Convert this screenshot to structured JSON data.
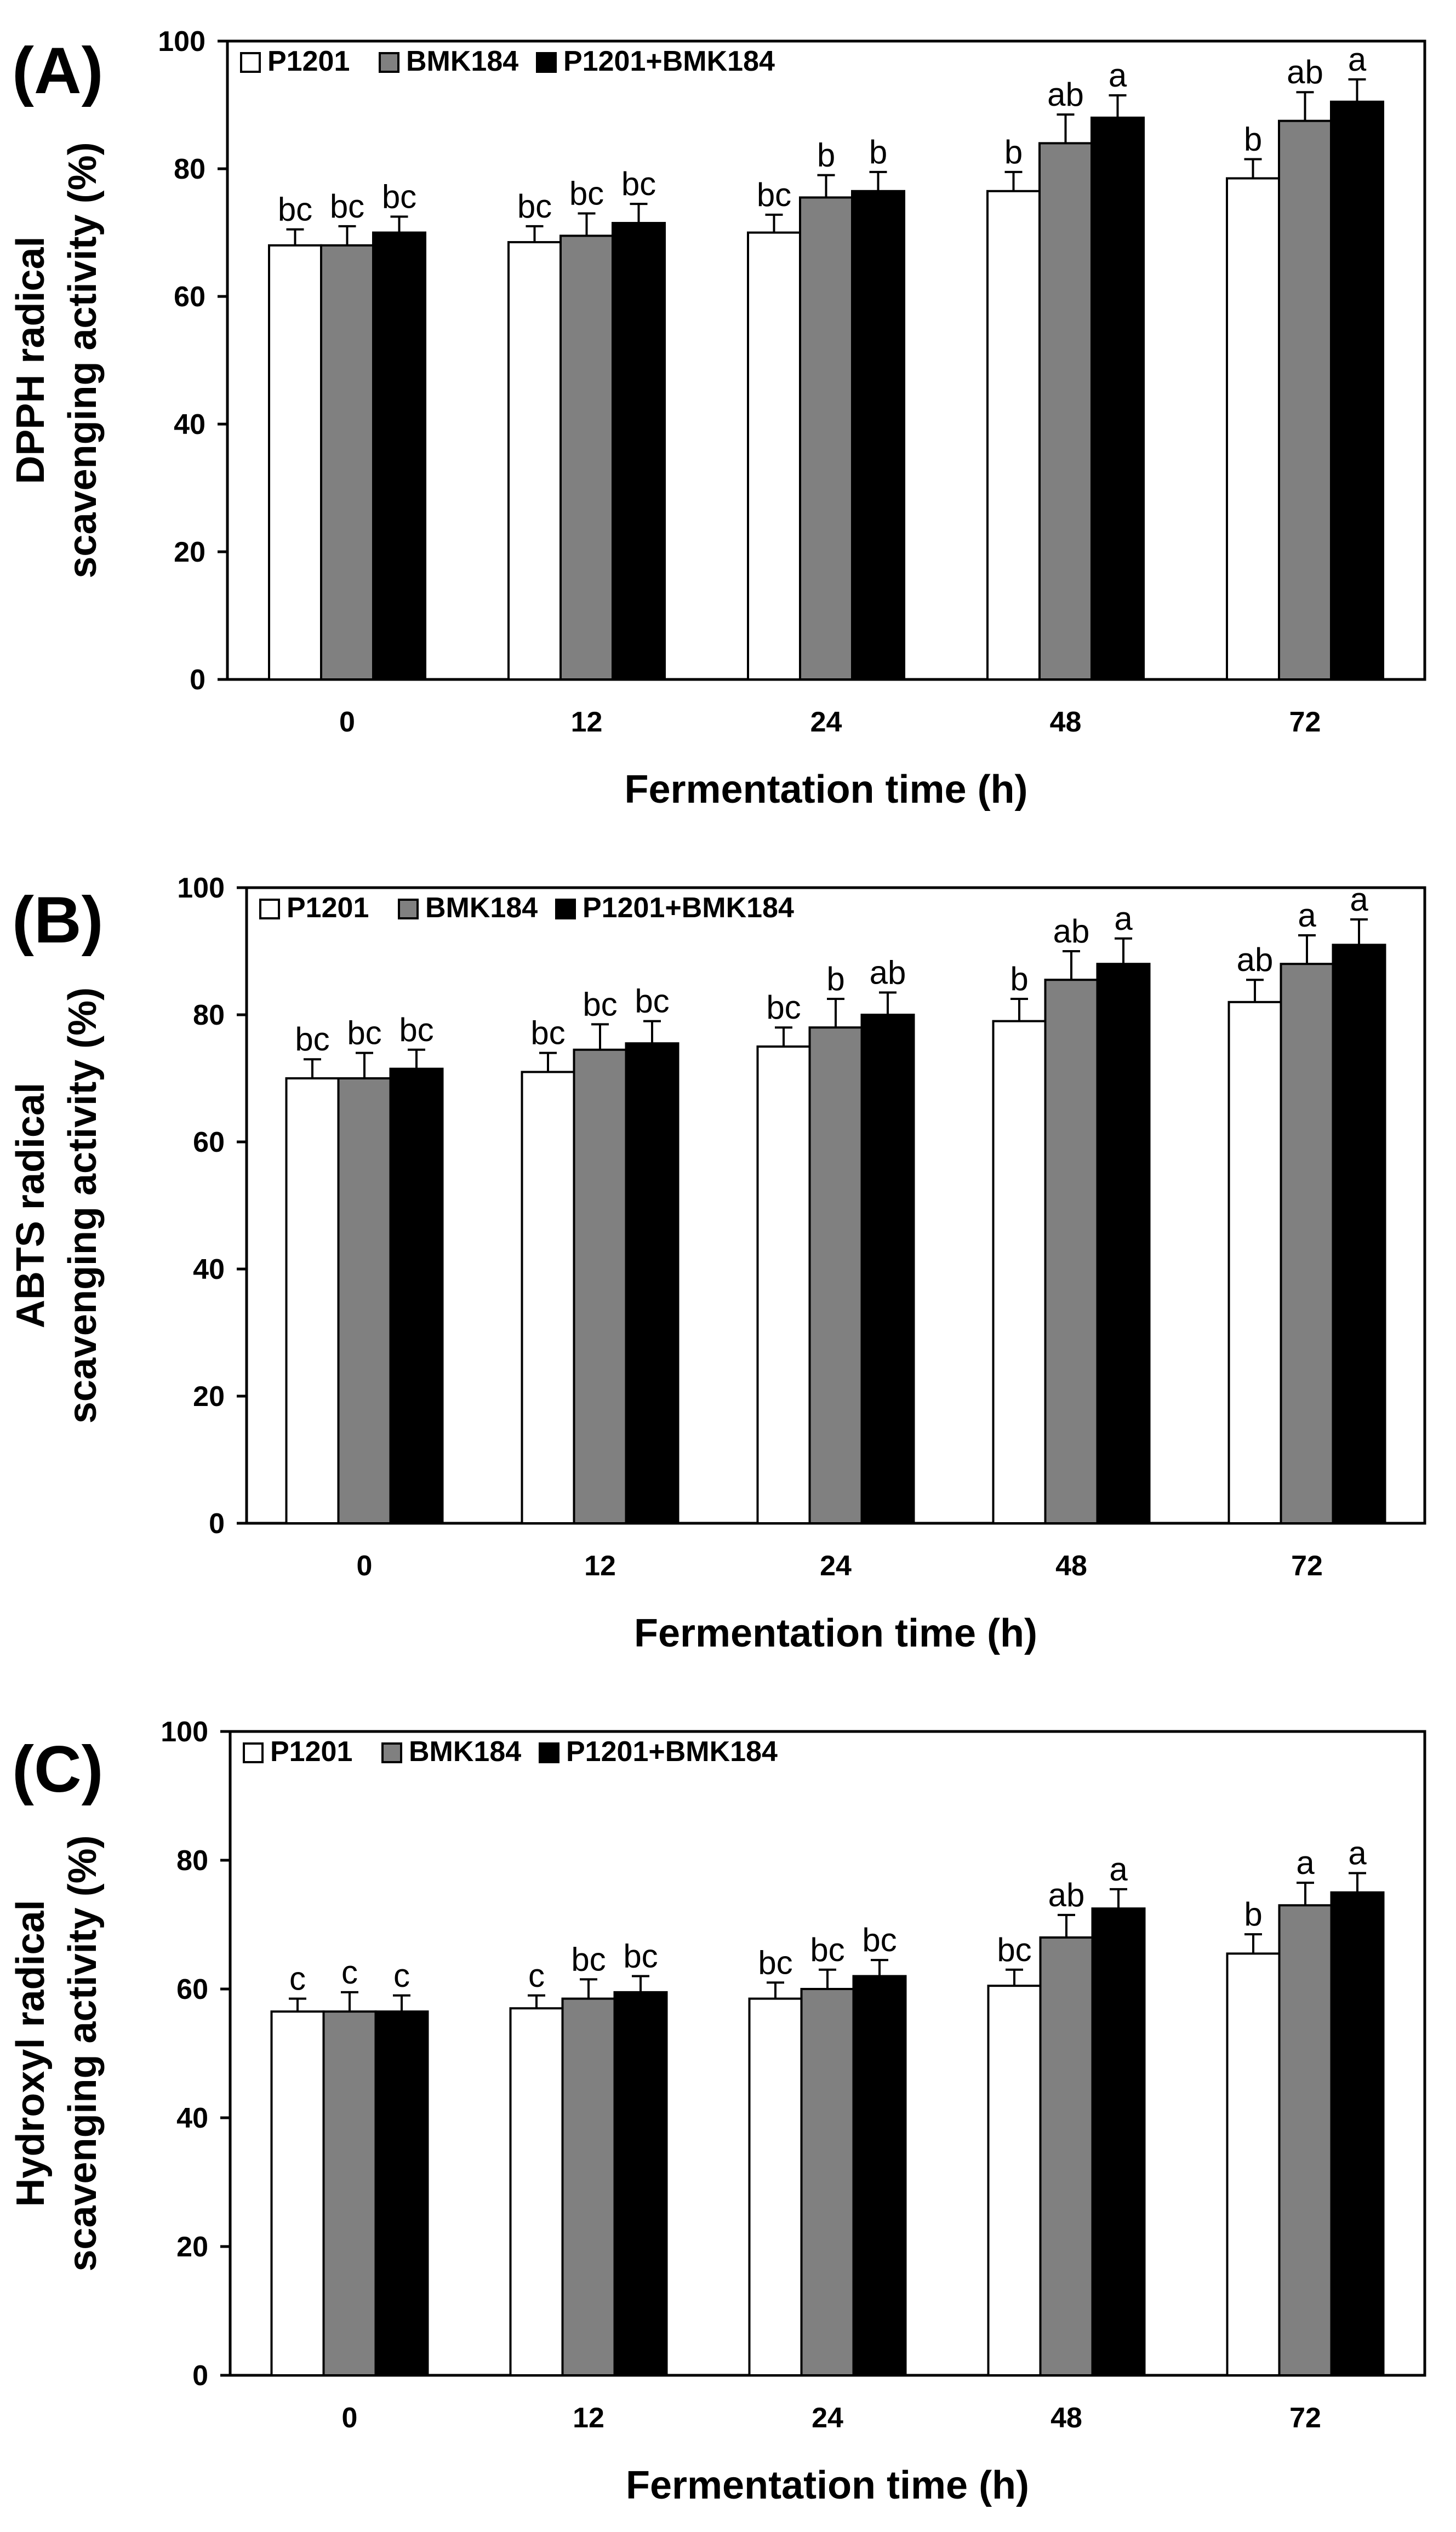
{
  "chart_data": [
    {
      "type": "bar",
      "panel_label": "(A)",
      "categories": [
        "0",
        "12",
        "24",
        "48",
        "72"
      ],
      "xlabel": "Fermentation time (h)",
      "ylabel_lines": [
        "DPPH radical",
        "scavenging activity (%)"
      ],
      "ylim": [
        0,
        100
      ],
      "yticks": [
        "0",
        "20",
        "40",
        "60",
        "80",
        "100"
      ],
      "legend_placement": "top-left",
      "series": [
        {
          "name": "P1201",
          "color": "#ffffff",
          "values": [
            68,
            68.5,
            70,
            76.5,
            78.5
          ],
          "errors": [
            2.5,
            2.5,
            2.8,
            3,
            3
          ],
          "letters": [
            "bc",
            "bc",
            "bc",
            "b",
            "b"
          ]
        },
        {
          "name": "BMK184",
          "color": "#808080",
          "values": [
            68,
            69.5,
            75.5,
            84,
            87.5
          ],
          "errors": [
            3,
            3.5,
            3.5,
            4.5,
            4.5
          ],
          "letters": [
            "bc",
            "bc",
            "b",
            "ab",
            "ab"
          ]
        },
        {
          "name": "P1201+BMK184",
          "color": "#000000",
          "values": [
            70,
            71.5,
            76.5,
            88,
            90.5
          ],
          "errors": [
            2.5,
            3,
            3,
            3.5,
            3.5
          ],
          "letters": [
            "bc",
            "bc",
            "b",
            "a",
            "a"
          ]
        }
      ]
    },
    {
      "type": "bar",
      "panel_label": "(B)",
      "categories": [
        "0",
        "12",
        "24",
        "48",
        "72"
      ],
      "xlabel": "Fermentation time (h)",
      "ylabel_lines": [
        "ABTS radical",
        "scavenging activity (%)"
      ],
      "ylim": [
        0,
        100
      ],
      "yticks": [
        "0",
        "20",
        "40",
        "60",
        "80",
        "100"
      ],
      "legend_placement": "top-left",
      "series": [
        {
          "name": "P1201",
          "color": "#ffffff",
          "values": [
            70,
            71,
            75,
            79,
            82
          ],
          "errors": [
            3,
            3,
            3,
            3.5,
            3.5
          ],
          "letters": [
            "bc",
            "bc",
            "bc",
            "b",
            "ab"
          ]
        },
        {
          "name": "BMK184",
          "color": "#808080",
          "values": [
            70,
            74.5,
            78,
            85.5,
            88
          ],
          "errors": [
            4,
            4,
            4.5,
            4.5,
            4.5
          ],
          "letters": [
            "bc",
            "bc",
            "b",
            "ab",
            "a"
          ]
        },
        {
          "name": "P1201+BMK184",
          "color": "#000000",
          "values": [
            71.5,
            75.5,
            80,
            88,
            91
          ],
          "errors": [
            3,
            3.5,
            3.5,
            4,
            4
          ],
          "letters": [
            "bc",
            "bc",
            "ab",
            "a",
            "a"
          ]
        }
      ]
    },
    {
      "type": "bar",
      "panel_label": "(C)",
      "categories": [
        "0",
        "12",
        "24",
        "48",
        "72"
      ],
      "xlabel": "Fermentation time (h)",
      "ylabel_lines": [
        "Hydroxyl radical",
        "scavenging activity (%)"
      ],
      "ylim": [
        0,
        100
      ],
      "yticks": [
        "0",
        "20",
        "40",
        "60",
        "80",
        "100"
      ],
      "legend_placement": "top-left",
      "series": [
        {
          "name": "P1201",
          "color": "#ffffff",
          "values": [
            56.5,
            57,
            58.5,
            60.5,
            65.5
          ],
          "errors": [
            2,
            2,
            2.5,
            2.5,
            3
          ],
          "letters": [
            "c",
            "c",
            "bc",
            "bc",
            "b"
          ]
        },
        {
          "name": "BMK184",
          "color": "#808080",
          "values": [
            56.5,
            58.5,
            60,
            68,
            73
          ],
          "errors": [
            3,
            3,
            3,
            3.5,
            3.5
          ],
          "letters": [
            "c",
            "bc",
            "bc",
            "ab",
            "a"
          ]
        },
        {
          "name": "P1201+BMK184",
          "color": "#000000",
          "values": [
            56.5,
            59.5,
            62,
            72.5,
            75
          ],
          "errors": [
            2.5,
            2.5,
            2.5,
            3,
            3
          ],
          "letters": [
            "c",
            "bc",
            "bc",
            "a",
            "a"
          ]
        }
      ]
    }
  ]
}
